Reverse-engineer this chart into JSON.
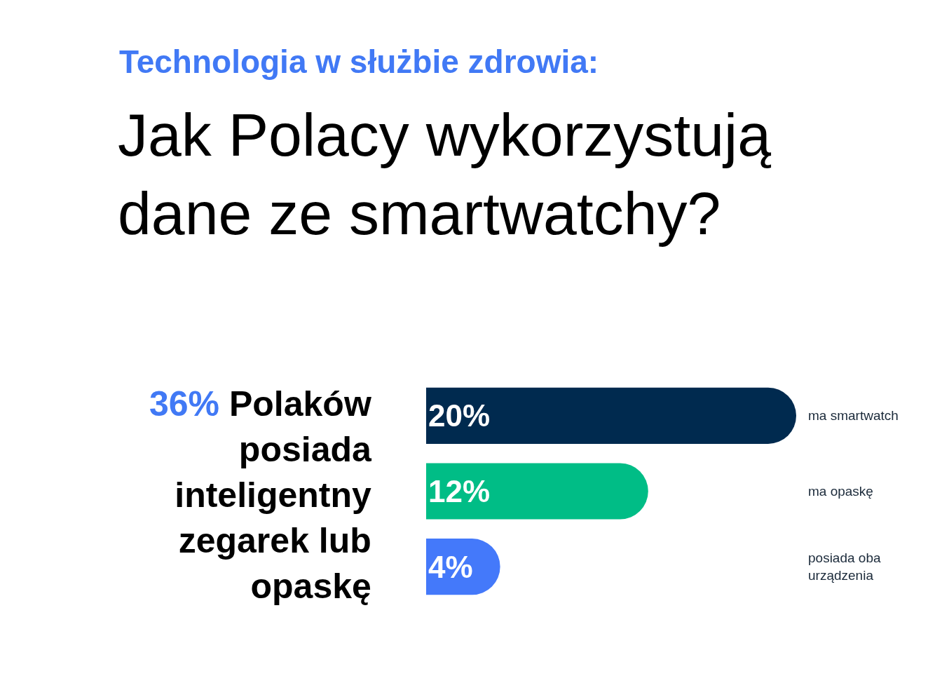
{
  "chart_data": {
    "type": "bar",
    "orientation": "horizontal",
    "subtitle": "Technologia w służbie zdrowia:",
    "title": "Jak Polacy wykorzystują dane ze smartwatchy?",
    "categories": [
      "ma smartwatch",
      "ma opaskę",
      "posiada oba urządzenia"
    ],
    "values": [
      20,
      12,
      4
    ],
    "colors": [
      "#002a4f",
      "#00bd86",
      "#4479fa"
    ],
    "value_labels": [
      "20%",
      "12%",
      "4%"
    ],
    "xlim": [
      0,
      20
    ],
    "annotations": [
      "36% Polaków posiada inteligentny zegarek lub opaskę"
    ]
  }
}
